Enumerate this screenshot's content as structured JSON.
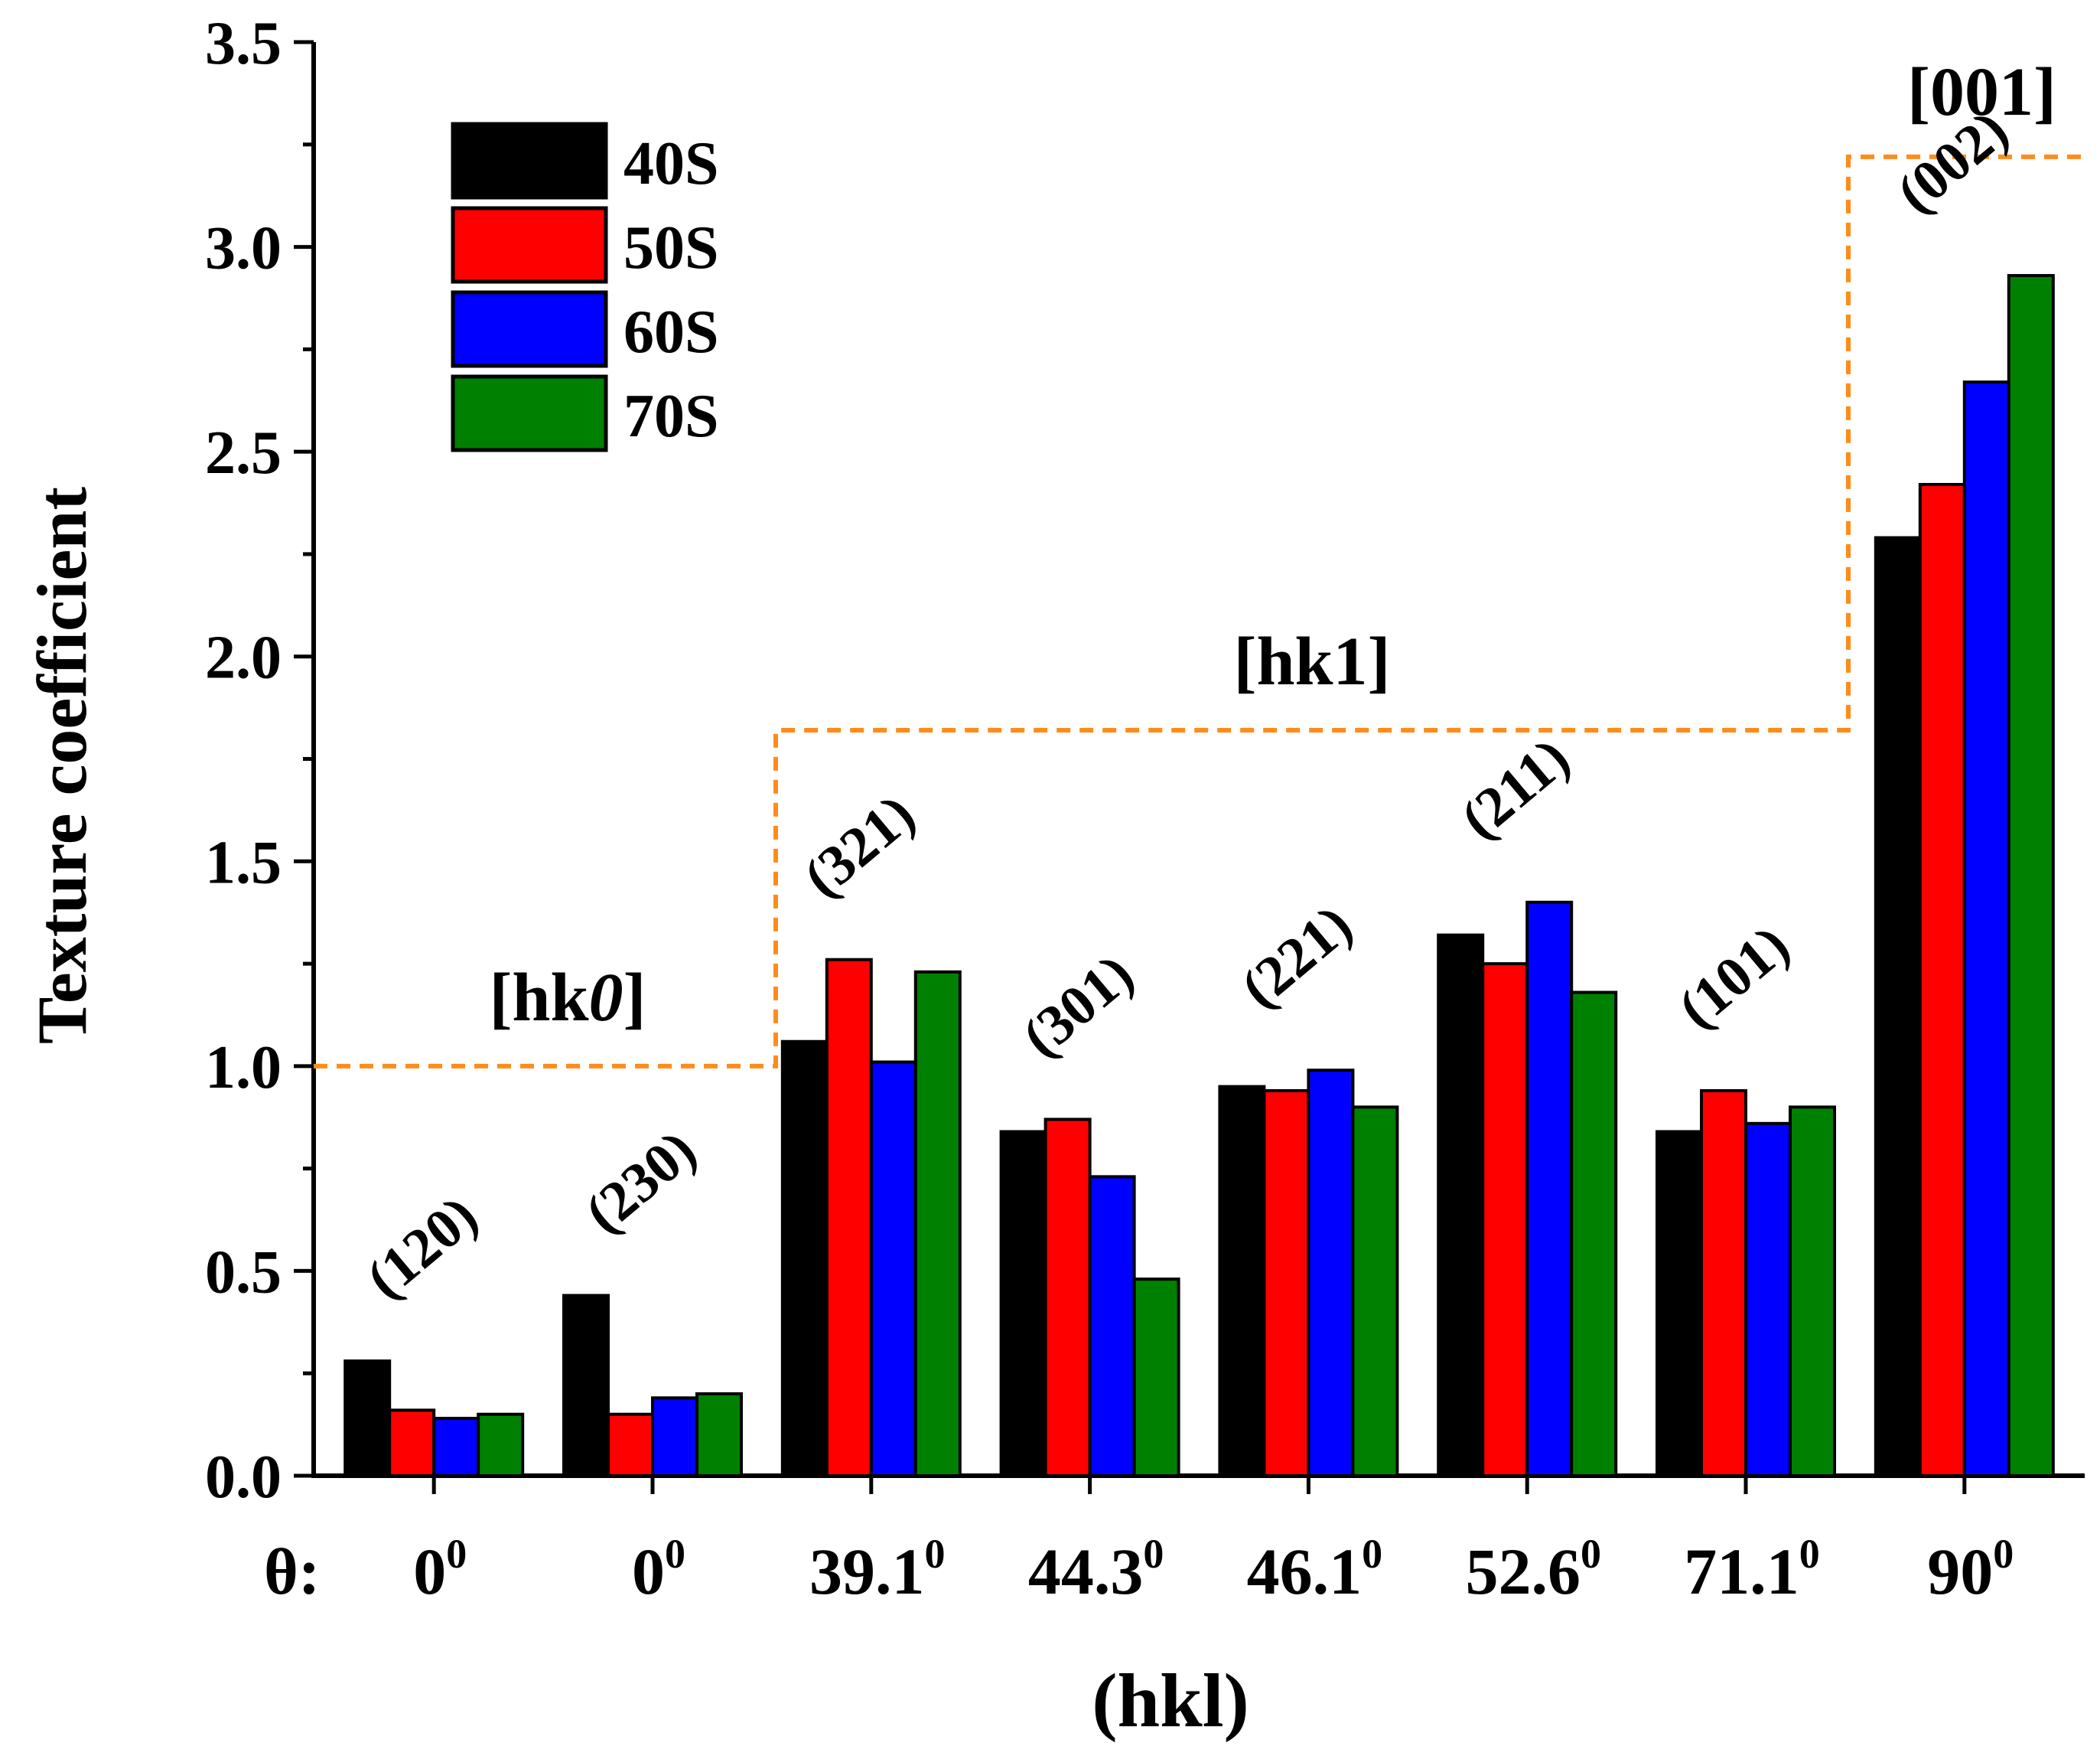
{
  "chart_data": {
    "type": "bar",
    "title": "",
    "xlabel": "(hkl)",
    "ylabel": "Texture coefficient",
    "ylim": [
      0,
      3.5
    ],
    "yticks": [
      "0.0",
      "0.5",
      "1.0",
      "1.5",
      "2.0",
      "2.5",
      "3.0",
      "3.5"
    ],
    "theta_prefix": "θ:",
    "categories": [
      {
        "hkl": "(120)",
        "theta": "0",
        "theta_sup": "0"
      },
      {
        "hkl": "(230)",
        "theta": "0",
        "theta_sup": "0"
      },
      {
        "hkl": "(321)",
        "theta": "39.1",
        "theta_sup": "0"
      },
      {
        "hkl": "(301)",
        "theta": "44.3",
        "theta_sup": "0"
      },
      {
        "hkl": "(221)",
        "theta": "46.1",
        "theta_sup": "0"
      },
      {
        "hkl": "(211)",
        "theta": "52.6",
        "theta_sup": "0"
      },
      {
        "hkl": "(101)",
        "theta": "71.1",
        "theta_sup": "0"
      },
      {
        "hkl": "(002)",
        "theta": "90",
        "theta_sup": "0"
      }
    ],
    "series": [
      {
        "name": "40S",
        "color": "#000000",
        "values": [
          0.28,
          0.44,
          1.06,
          0.84,
          0.95,
          1.32,
          0.84,
          2.29
        ]
      },
      {
        "name": "50S",
        "color": "#ff0000",
        "values": [
          0.16,
          0.15,
          1.26,
          0.87,
          0.94,
          1.25,
          0.94,
          2.42
        ]
      },
      {
        "name": "60S",
        "color": "#0000ff",
        "values": [
          0.14,
          0.19,
          1.01,
          0.73,
          0.99,
          1.4,
          0.86,
          2.67
        ]
      },
      {
        "name": "70S",
        "color": "#008000",
        "values": [
          0.15,
          0.2,
          1.23,
          0.48,
          0.9,
          1.18,
          0.9,
          2.93
        ]
      }
    ],
    "legend_position": "top-left",
    "orientation_groups": [
      {
        "label": "[hk",
        "label_italic": "0",
        "label_close": "]",
        "level": 1.0,
        "from_category": 0,
        "to_category": 1
      },
      {
        "label": "[hk1]",
        "level": 1.82,
        "from_category": 2,
        "to_category": 6
      },
      {
        "label": "[001]",
        "level": 3.22,
        "from_category": 7,
        "to_category": 7
      }
    ],
    "group_line_color": "#ff8c1a"
  }
}
